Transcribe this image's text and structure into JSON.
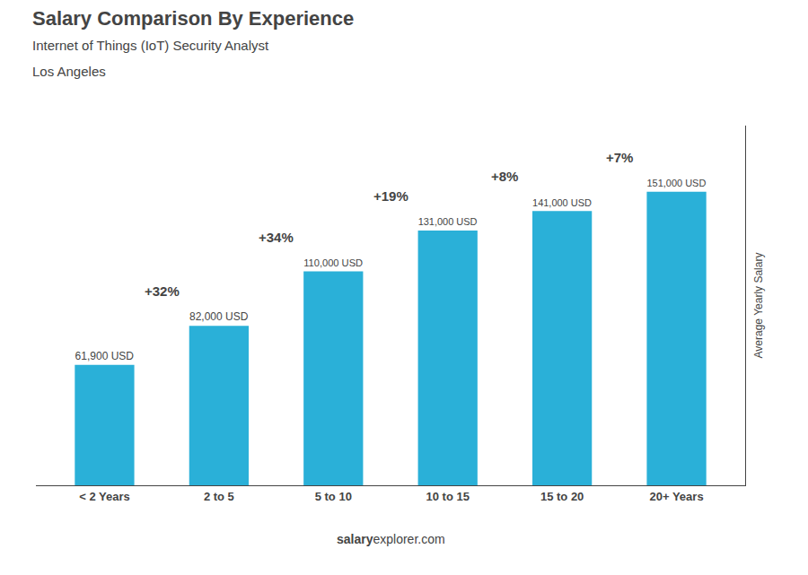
{
  "chart_data": {
    "type": "bar",
    "title": "Salary Comparison By Experience",
    "subtitle": [
      "Internet of Things (IoT) Security Analyst",
      "Los Angeles"
    ],
    "ylabel": "Average Yearly Salary",
    "categories": [
      "< 2 Years",
      "2 to 5",
      "5 to 10",
      "10 to 15",
      "15 to 20",
      "20+ Years"
    ],
    "values": [
      61900,
      82000,
      110000,
      131000,
      141000,
      151000
    ],
    "value_labels": [
      "61,900 USD",
      "82,000 USD",
      "110,000 USD",
      "131,000 USD",
      "141,000 USD",
      "151,000 USD"
    ],
    "data_labels": true,
    "color": "#2ab0d8",
    "annotations": [
      "+32%",
      "+34%",
      "+19%",
      "+8%",
      "+7%"
    ],
    "footer": [
      "salary",
      "explorer.com"
    ],
    "ylim": [
      0,
      185000
    ],
    "tick_labels": "x",
    "grid": false
  }
}
